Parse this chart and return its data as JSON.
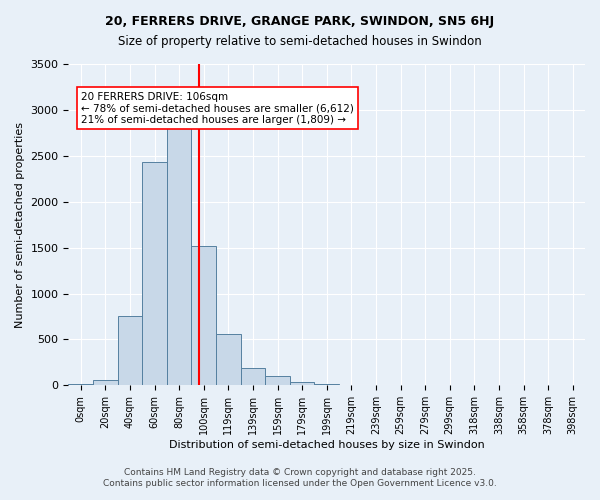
{
  "title_line1": "20, FERRERS DRIVE, GRANGE PARK, SWINDON, SN5 6HJ",
  "title_line2": "Size of property relative to semi-detached houses in Swindon",
  "xlabel": "Distribution of semi-detached houses by size in Swindon",
  "ylabel": "Number of semi-detached properties",
  "bar_labels": [
    "0sqm",
    "20sqm",
    "40sqm",
    "60sqm",
    "80sqm",
    "100sqm",
    "119sqm",
    "139sqm",
    "159sqm",
    "179sqm",
    "199sqm",
    "219sqm",
    "239sqm",
    "259sqm",
    "279sqm",
    "299sqm",
    "318sqm",
    "338sqm",
    "358sqm",
    "378sqm",
    "398sqm"
  ],
  "bar_heights": [
    20,
    60,
    760,
    2430,
    2870,
    1520,
    555,
    190,
    100,
    40,
    20,
    0,
    0,
    0,
    0,
    0,
    0,
    0,
    0,
    0,
    0
  ],
  "bar_color": "#c8d8e8",
  "bar_edge_color": "#5580a0",
  "vline_x": 5.3,
  "vline_color": "red",
  "annotation_text": "20 FERRERS DRIVE: 106sqm\n← 78% of semi-detached houses are smaller (6,612)\n21% of semi-detached houses are larger (1,809) →",
  "annotation_box_color": "white",
  "annotation_box_edge_color": "red",
  "background_color": "#e8f0f8",
  "plot_bg_color": "#e8f0f8",
  "grid_color": "white",
  "ylim": [
    0,
    3500
  ],
  "yticks": [
    0,
    500,
    1000,
    1500,
    2000,
    2500,
    3000,
    3500
  ],
  "footer_line1": "Contains HM Land Registry data © Crown copyright and database right 2025.",
  "footer_line2": "Contains public sector information licensed under the Open Government Licence v3.0."
}
